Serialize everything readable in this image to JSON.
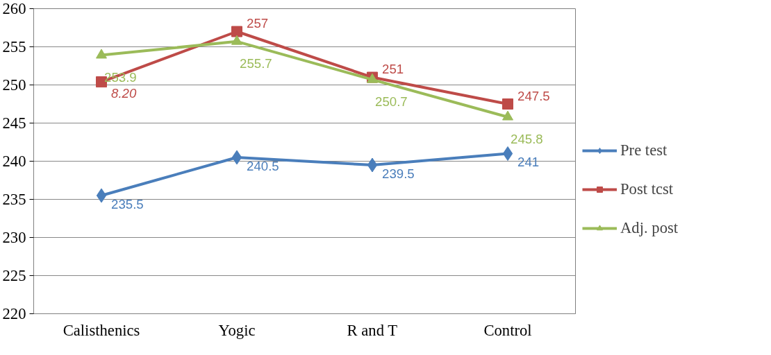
{
  "chart_data": {
    "type": "line",
    "categories": [
      "Calisthenics",
      "Yogic",
      "R and T",
      "Control"
    ],
    "series": [
      {
        "name": "Pre test",
        "color": "#4a7ebb",
        "marker": "diamond",
        "values": [
          235.5,
          240.5,
          239.5,
          241
        ],
        "value_labels": [
          "235.5",
          "240.5",
          "239.5",
          "241"
        ]
      },
      {
        "name": "Post tcst",
        "color": "#be4b48",
        "marker": "square",
        "values": [
          250.4,
          257,
          251,
          247.5
        ],
        "value_labels": [
          null,
          "257",
          "251",
          "247.5"
        ]
      },
      {
        "name": "Adj. post",
        "color": "#9bbb59",
        "marker": "triangle",
        "values": [
          253.9,
          255.7,
          250.7,
          245.8
        ],
        "value_labels": [
          "253.9",
          "255.7",
          "250.7",
          "245.8"
        ]
      }
    ],
    "ylim": [
      220,
      260
    ],
    "yticks": [
      220,
      225,
      230,
      235,
      240,
      245,
      250,
      255,
      260
    ],
    "annotations": [
      {
        "text": "8.20",
        "x": "Calisthenics",
        "y": 250.4
      }
    ],
    "grid": "y",
    "legend": "right",
    "line_style": "solid"
  }
}
